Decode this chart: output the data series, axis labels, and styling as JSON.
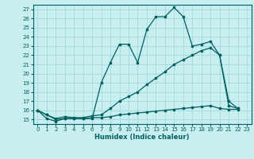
{
  "xlabel": "Humidex (Indice chaleur)",
  "bg_color": "#c8eef0",
  "line_color": "#006060",
  "grid_color": "#a0d8dc",
  "xlim": [
    -0.5,
    23.5
  ],
  "ylim": [
    14.5,
    27.5
  ],
  "xticks": [
    0,
    1,
    2,
    3,
    4,
    5,
    6,
    7,
    8,
    9,
    10,
    11,
    12,
    13,
    14,
    15,
    16,
    17,
    18,
    19,
    20,
    21,
    22,
    23
  ],
  "yticks": [
    15,
    16,
    17,
    18,
    19,
    20,
    21,
    22,
    23,
    24,
    25,
    26,
    27
  ],
  "line1_x": [
    0,
    1,
    2,
    3,
    4,
    5,
    6,
    7,
    8,
    9,
    10,
    11,
    12,
    13,
    14,
    15,
    16,
    17,
    18,
    19,
    20,
    21,
    22
  ],
  "line1_y": [
    16.0,
    15.1,
    14.8,
    15.1,
    15.1,
    15.1,
    15.1,
    19.0,
    21.2,
    23.2,
    23.2,
    21.2,
    24.8,
    26.2,
    26.2,
    27.2,
    26.2,
    23.0,
    23.2,
    23.5,
    22.0,
    17.0,
    16.2
  ],
  "line2_x": [
    0,
    1,
    2,
    3,
    4,
    5,
    6,
    7,
    8,
    9,
    10,
    11,
    12,
    13,
    14,
    15,
    16,
    17,
    18,
    19,
    20,
    21,
    22
  ],
  "line2_y": [
    16.0,
    15.5,
    15.1,
    15.3,
    15.2,
    15.2,
    15.4,
    15.5,
    16.2,
    17.0,
    17.5,
    18.0,
    18.8,
    19.5,
    20.2,
    21.0,
    21.5,
    22.0,
    22.5,
    22.8,
    22.0,
    16.5,
    16.2
  ],
  "line3_x": [
    0,
    1,
    2,
    3,
    4,
    5,
    6,
    7,
    8,
    9,
    10,
    11,
    12,
    13,
    14,
    15,
    16,
    17,
    18,
    19,
    20,
    21,
    22
  ],
  "line3_y": [
    16.0,
    15.5,
    15.0,
    15.1,
    15.1,
    15.1,
    15.2,
    15.2,
    15.3,
    15.5,
    15.6,
    15.7,
    15.8,
    15.9,
    16.0,
    16.1,
    16.2,
    16.3,
    16.4,
    16.5,
    16.2,
    16.1,
    16.1
  ]
}
